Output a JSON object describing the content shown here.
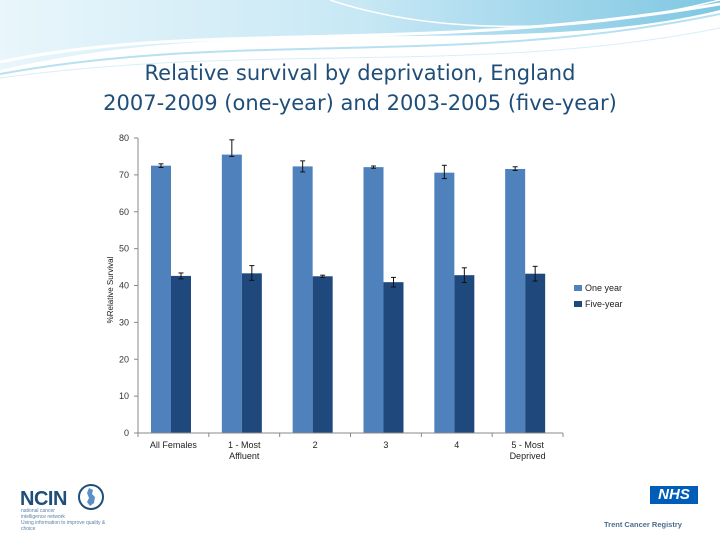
{
  "title": {
    "line1": "Relative survival by deprivation, England",
    "line2": "2007-2009 (one-year) and 2003-2005 (five-year)"
  },
  "colors": {
    "title": "#1f4e79",
    "one_year": "#4f81bd",
    "five_year": "#1f497d",
    "banner_light": "#d7eef8",
    "banner_mid": "#8fcfe6"
  },
  "chart_data": {
    "type": "bar",
    "title": "",
    "xlabel": "",
    "ylabel": "%Relative Survival",
    "ylim": [
      0,
      80
    ],
    "yticks": [
      0,
      10,
      20,
      30,
      40,
      50,
      60,
      70,
      80
    ],
    "grid": false,
    "legend_position": "right",
    "categories": [
      [
        "All Females"
      ],
      [
        "1 - Most",
        "Affluent"
      ],
      [
        "2"
      ],
      [
        "3"
      ],
      [
        "4"
      ],
      [
        "5 - Most",
        "Deprived"
      ]
    ],
    "series": [
      {
        "name": "One year",
        "color": "#4f81bd",
        "values": [
          72.5,
          75.5,
          72.3,
          72.1,
          70.6,
          71.6
        ],
        "err_low": [
          72.0,
          75.0,
          70.8,
          71.8,
          69.0,
          71.2
        ],
        "err_high": [
          73.0,
          79.5,
          73.8,
          72.4,
          72.6,
          72.2
        ]
      },
      {
        "name": "Five-year",
        "color": "#1f497d",
        "values": [
          42.6,
          43.3,
          42.5,
          40.9,
          42.8,
          43.2
        ],
        "err_low": [
          41.8,
          41.4,
          42.2,
          39.6,
          40.8,
          41.2
        ],
        "err_high": [
          43.4,
          45.4,
          42.8,
          42.2,
          44.8,
          45.2
        ]
      }
    ]
  },
  "footer": {
    "ncin_logo": "NCIN",
    "ncin_sub1": "national cancer",
    "ncin_sub2": "intelligence network",
    "ncin_sub3": "Using information to improve quality & choice",
    "nhs_logo": "NHS",
    "registry": "Trent Cancer Registry"
  }
}
